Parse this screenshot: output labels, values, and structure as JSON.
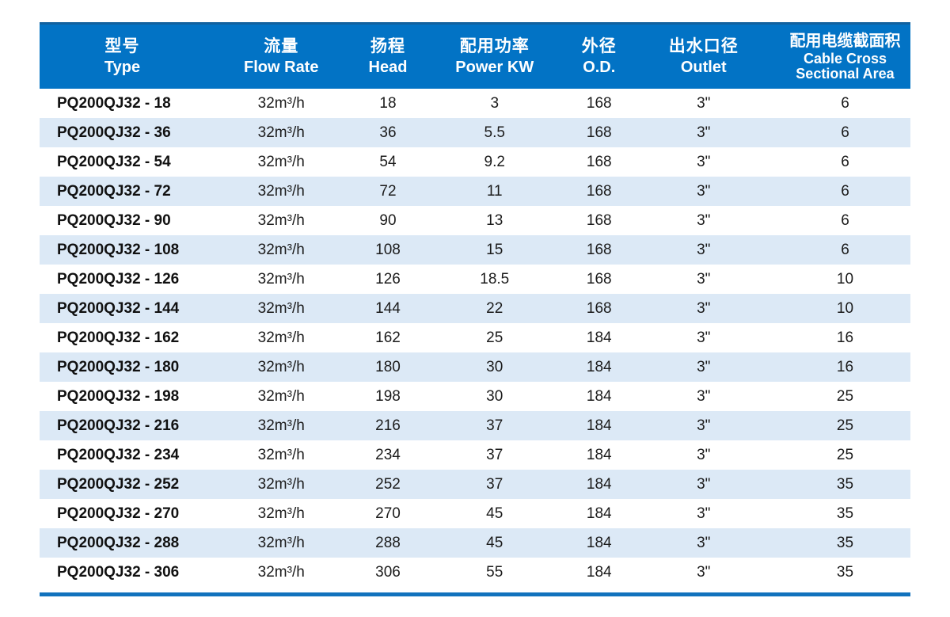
{
  "colors": {
    "header_bg": "#0273c5",
    "header_top_edge": "#11619f",
    "stripe_bg": "#dce9f6",
    "bottom_rule": "#1272bd",
    "header_text": "#ffffff",
    "body_text": "#1b1b1b"
  },
  "table": {
    "column_keys": [
      "type",
      "flow-rate",
      "head",
      "power-kw",
      "od",
      "outlet",
      "cable-area"
    ],
    "columns": [
      {
        "zh": "型号",
        "en": "Type"
      },
      {
        "zh": "流量",
        "en": "Flow Rate"
      },
      {
        "zh": "扬程",
        "en": "Head"
      },
      {
        "zh": "配用功率",
        "en": "Power KW"
      },
      {
        "zh": "外径",
        "en": "O.D."
      },
      {
        "zh": "出水口径",
        "en": "Outlet"
      },
      {
        "zh": "配用电缆截面积",
        "en": "Cable Cross",
        "en2": "Sectional Area"
      }
    ],
    "rows": [
      [
        "PQ200QJ32 - 18",
        "32m³/h",
        "18",
        "3",
        "168",
        "3\"",
        "6"
      ],
      [
        "PQ200QJ32 - 36",
        "32m³/h",
        "36",
        "5.5",
        "168",
        "3\"",
        "6"
      ],
      [
        "PQ200QJ32 - 54",
        "32m³/h",
        "54",
        "9.2",
        "168",
        "3\"",
        "6"
      ],
      [
        "PQ200QJ32 - 72",
        "32m³/h",
        "72",
        "11",
        "168",
        "3\"",
        "6"
      ],
      [
        "PQ200QJ32 - 90",
        "32m³/h",
        "90",
        "13",
        "168",
        "3\"",
        "6"
      ],
      [
        "PQ200QJ32 - 108",
        "32m³/h",
        "108",
        "15",
        "168",
        "3\"",
        "6"
      ],
      [
        "PQ200QJ32 - 126",
        "32m³/h",
        "126",
        "18.5",
        "168",
        "3\"",
        "10"
      ],
      [
        "PQ200QJ32 - 144",
        "32m³/h",
        "144",
        "22",
        "168",
        "3\"",
        "10"
      ],
      [
        "PQ200QJ32 - 162",
        "32m³/h",
        "162",
        "25",
        "184",
        "3\"",
        "16"
      ],
      [
        "PQ200QJ32 - 180",
        "32m³/h",
        "180",
        "30",
        "184",
        "3\"",
        "16"
      ],
      [
        "PQ200QJ32 - 198",
        "32m³/h",
        "198",
        "30",
        "184",
        "3\"",
        "25"
      ],
      [
        "PQ200QJ32 - 216",
        "32m³/h",
        "216",
        "37",
        "184",
        "3\"",
        "25"
      ],
      [
        "PQ200QJ32 - 234",
        "32m³/h",
        "234",
        "37",
        "184",
        "3\"",
        "25"
      ],
      [
        "PQ200QJ32 - 252",
        "32m³/h",
        "252",
        "37",
        "184",
        "3\"",
        "35"
      ],
      [
        "PQ200QJ32 - 270",
        "32m³/h",
        "270",
        "45",
        "184",
        "3\"",
        "35"
      ],
      [
        "PQ200QJ32 - 288",
        "32m³/h",
        "288",
        "45",
        "184",
        "3\"",
        "35"
      ],
      [
        "PQ200QJ32 - 306",
        "32m³/h",
        "306",
        "55",
        "184",
        "3\"",
        "35"
      ]
    ]
  }
}
